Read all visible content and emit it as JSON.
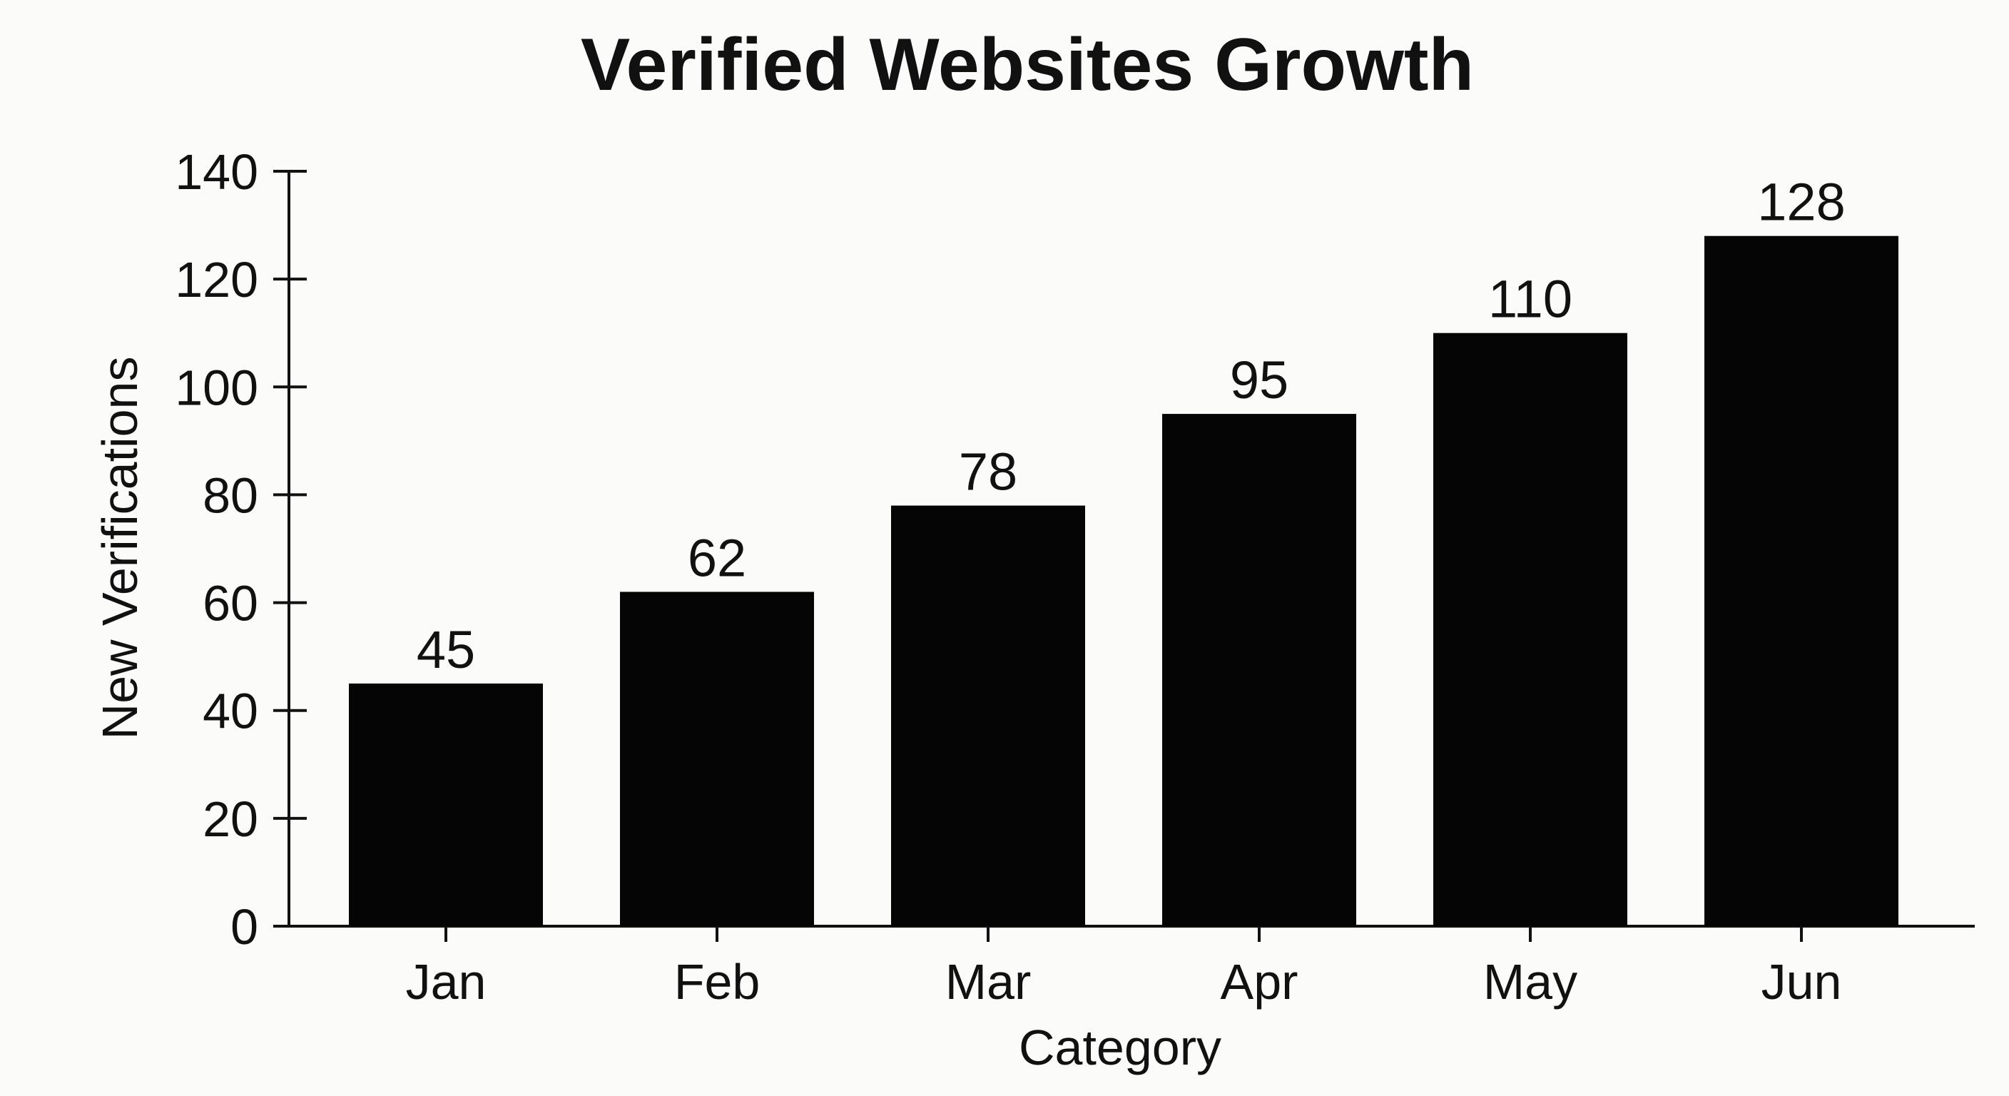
{
  "chart_data": {
    "type": "bar",
    "title": "Verified Websites Growth",
    "xlabel": "Category",
    "ylabel": "New Verifications",
    "categories": [
      "Jan",
      "Feb",
      "Mar",
      "Apr",
      "May",
      "Jun"
    ],
    "values": [
      45,
      62,
      78,
      95,
      110,
      128
    ],
    "data_labels": [
      "45",
      "62",
      "78",
      "95",
      "110",
      "128"
    ],
    "ylim": [
      0,
      140
    ],
    "yticks": [
      0,
      20,
      40,
      60,
      80,
      100,
      120,
      140
    ],
    "ytick_labels": [
      "0",
      "20",
      "40",
      "60",
      "80",
      "100",
      "120",
      "140"
    ],
    "grid": false,
    "legend": "none",
    "bar_color": "#050505",
    "background_color": "#fbfbfa",
    "text_color": "#111111"
  }
}
